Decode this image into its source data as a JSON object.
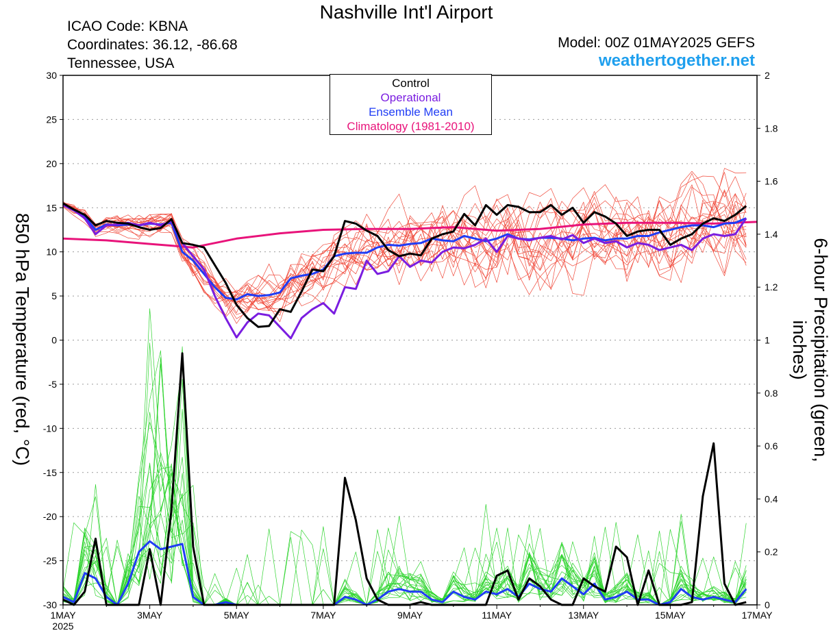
{
  "header": {
    "title": "Nashville Int'l Airport",
    "icao": "ICAO Code: KBNA",
    "coords": "Coordinates: 36.12, -86.68",
    "region": "Tennessee, USA",
    "model": "Model: 00Z 01MAY2025 GEFS",
    "site": "weathertogether.net"
  },
  "legend": {
    "control": "Control",
    "operational": "Operational",
    "mean": "Ensemble Mean",
    "climo": "Climatology (1981-2010)"
  },
  "colors": {
    "control": "#000000",
    "operational": "#7a1de0",
    "mean": "#1f3cf5",
    "climo": "#e8137a",
    "members_temp": "#f0493a",
    "members_precip": "#2ed42e"
  },
  "chart_data": {
    "type": "line",
    "xlabel": "",
    "x_range_days": [
      0,
      16
    ],
    "x_ticks": [
      "1MAY\n2025",
      "3MAY",
      "5MAY",
      "7MAY",
      "9MAY",
      "11MAY",
      "13MAY",
      "15MAY",
      "17MAY"
    ],
    "ylabel_left": "850 hPa Temperature (red, °C)",
    "ylabel_right": "6-hour Precipitation (green, inches)",
    "ylim_left": [
      -30,
      30
    ],
    "ylim_right": [
      0,
      2
    ],
    "yticks_left": [
      "30",
      "25",
      "20",
      "15",
      "10",
      "5",
      "0",
      "-5",
      "-10",
      "-15",
      "-20",
      "-25",
      "-30"
    ],
    "yticks_right": [
      "2",
      "1.8",
      "1.6",
      "1.4",
      "1.2",
      "1",
      "0.8",
      "0.6",
      "0.4",
      "0.2",
      "0"
    ],
    "grid": true,
    "legend_position": "top-center",
    "temperature_series": [
      {
        "name": "Control",
        "step_hours": 6,
        "values": [
          15.5,
          14.8,
          14.2,
          13.0,
          13.5,
          13.3,
          13.2,
          12.8,
          12.5,
          12.7,
          13.7,
          11.0,
          10.8,
          10.5,
          8.5,
          6.5,
          4.0,
          2.5,
          1.5,
          1.6,
          3.5,
          3.2,
          5.5,
          8.0,
          7.8,
          9.5,
          13.5,
          13.2,
          12.4,
          11.8,
          10.2,
          9.5,
          9.8,
          9.6,
          11.5,
          12.0,
          12.3,
          14.3,
          13.0,
          15.3,
          14.2,
          15.3,
          15.1,
          14.5,
          14.5,
          15.3,
          14.2,
          15.0,
          13.3,
          14.5,
          14.0,
          13.2,
          11.8,
          12.3,
          12.5,
          12.5,
          10.8,
          11.5,
          12.0,
          13.2,
          13.8,
          13.5,
          14.2,
          15.2
        ]
      },
      {
        "name": "Operational",
        "step_hours": 6,
        "values": [
          15.3,
          14.7,
          13.8,
          12.0,
          13.0,
          13.1,
          13.3,
          13.0,
          13.3,
          13.0,
          13.5,
          11.0,
          9.5,
          8.0,
          5.0,
          2.5,
          0.3,
          2.0,
          3.0,
          2.8,
          1.5,
          0.2,
          2.5,
          3.5,
          4.2,
          3.0,
          6.0,
          5.8,
          9.0,
          7.5,
          7.8,
          9.5,
          8.3,
          9.0,
          8.8,
          10.0,
          10.5,
          10.4,
          10.8,
          11.5,
          10.0,
          11.8,
          11.5,
          11.3,
          11.6,
          11.8,
          11.4,
          11.9,
          11.0,
          11.5,
          11.0,
          11.2,
          10.5,
          11.0,
          10.8,
          10.2,
          10.5,
          10.8,
          10.2,
          11.5,
          12.0,
          11.8,
          12.0,
          13.8
        ]
      },
      {
        "name": "Ensemble Mean",
        "step_hours": 6,
        "values": [
          15.4,
          14.7,
          14.0,
          12.5,
          13.1,
          13.0,
          13.1,
          13.0,
          13.2,
          13.1,
          13.3,
          10.0,
          9.0,
          7.5,
          6.0,
          4.8,
          4.6,
          5.2,
          5.0,
          5.1,
          5.4,
          7.0,
          7.3,
          7.5,
          8.0,
          9.5,
          9.8,
          9.9,
          9.9,
          10.5,
          10.8,
          10.7,
          10.9,
          11.0,
          11.5,
          11.3,
          11.2,
          11.8,
          11.5,
          11.2,
          11.5,
          12.0,
          11.5,
          11.4,
          11.6,
          11.6,
          11.5,
          11.3,
          11.5,
          11.6,
          11.3,
          11.5,
          11.5,
          11.8,
          11.8,
          12.2,
          12.5,
          12.8,
          13.0,
          13.0,
          12.8,
          13.2,
          13.3,
          13.8
        ]
      },
      {
        "name": "Climatology (1981-2010)",
        "step_hours": 24,
        "values": [
          11.5,
          11.3,
          10.9,
          10.5,
          11.5,
          12.1,
          12.5,
          12.6,
          12.6,
          12.8,
          12.4,
          12.6,
          13.1,
          13.3,
          13.3,
          13.2,
          13.4
        ]
      }
    ],
    "precip_series": [
      {
        "name": "Control",
        "step_hours": 6,
        "values": [
          0.02,
          0.0,
          0.05,
          0.25,
          0.0,
          0.0,
          0.0,
          0.0,
          0.21,
          0.0,
          0.36,
          0.95,
          0.22,
          0.0,
          0.0,
          0.0,
          0.0,
          0.0,
          0.0,
          0.0,
          0.0,
          0.0,
          0.0,
          0.0,
          0.0,
          0.0,
          0.48,
          0.32,
          0.1,
          0.02,
          0.0,
          0.0,
          0.0,
          0.01,
          0.0,
          0.0,
          0.0,
          0.0,
          0.0,
          0.0,
          0.11,
          0.13,
          0.02,
          0.1,
          0.07,
          0.02,
          0.0,
          0.0,
          0.1,
          0.07,
          0.05,
          0.22,
          0.18,
          0.0,
          0.13,
          0.0,
          0.0,
          0.0,
          0.01,
          0.41,
          0.61,
          0.08,
          0.0,
          0.01
        ]
      },
      {
        "name": "Ensemble Mean",
        "step_hours": 6,
        "values": [
          0.03,
          0.01,
          0.12,
          0.1,
          0.03,
          0.0,
          0.08,
          0.2,
          0.24,
          0.21,
          0.22,
          0.23,
          0.03,
          0.0,
          0.0,
          0.01,
          0.0,
          0.0,
          0.0,
          0.0,
          0.0,
          0.0,
          0.0,
          0.0,
          0.0,
          0.0,
          0.03,
          0.02,
          0.0,
          0.02,
          0.05,
          0.06,
          0.05,
          0.05,
          0.02,
          0.01,
          0.05,
          0.03,
          0.02,
          0.05,
          0.04,
          0.06,
          0.03,
          0.08,
          0.06,
          0.05,
          0.1,
          0.07,
          0.04,
          0.08,
          0.02,
          0.03,
          0.05,
          0.02,
          0.02,
          0.0,
          0.01,
          0.06,
          0.03,
          0.02,
          0.03,
          0.02,
          0.01,
          0.06
        ]
      }
    ]
  }
}
